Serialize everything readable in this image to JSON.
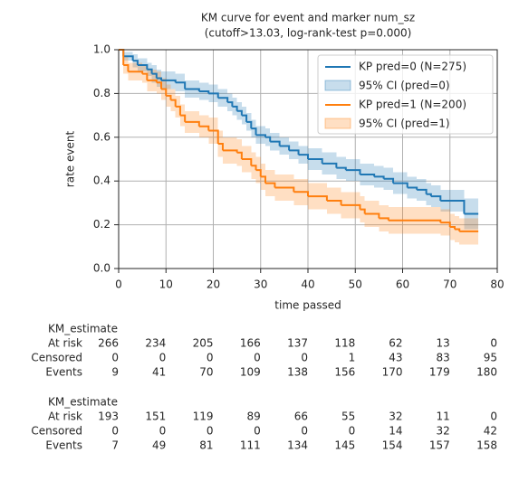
{
  "chart_data": {
    "type": "km",
    "title": "KM curve for event and marker num_sz",
    "subtitle": "(cutoff>13.03, log-rank-test p=0.000)",
    "x_label": "time passed",
    "y_label": "rate event",
    "xlim": [
      0,
      80
    ],
    "xticks": [
      0,
      10,
      20,
      30,
      40,
      50,
      60,
      70,
      80
    ],
    "ylim": [
      0,
      1
    ],
    "yticks": [
      {
        "value": 0,
        "label": "0.0"
      },
      0.2,
      0.4,
      0.6,
      0.8,
      {
        "value": 1,
        "label": "1.0"
      }
    ],
    "grid": true,
    "legend": "upper right",
    "series": [
      {
        "name": "KP pred=0 (N=275)",
        "ci_name": "95% CI (pred=0)",
        "color": "#1f77b4",
        "x": [
          0,
          1,
          3,
          4,
          6,
          7,
          8,
          9,
          12,
          14,
          17,
          19,
          21,
          23,
          24,
          25,
          26,
          27,
          28,
          29,
          31,
          32,
          34,
          36,
          38,
          40,
          43,
          46,
          48,
          51,
          54,
          56,
          58,
          61,
          63,
          65,
          66,
          68,
          73,
          76
        ],
        "values": [
          1.0,
          0.97,
          0.95,
          0.93,
          0.91,
          0.89,
          0.87,
          0.86,
          0.85,
          0.82,
          0.81,
          0.8,
          0.78,
          0.76,
          0.74,
          0.72,
          0.7,
          0.67,
          0.64,
          0.61,
          0.6,
          0.58,
          0.56,
          0.54,
          0.52,
          0.5,
          0.48,
          0.46,
          0.45,
          0.43,
          0.42,
          0.41,
          0.39,
          0.37,
          0.36,
          0.34,
          0.33,
          0.31,
          0.25,
          0.25
        ],
        "ci_lower": [
          1.0,
          0.95,
          0.92,
          0.9,
          0.88,
          0.85,
          0.83,
          0.82,
          0.81,
          0.78,
          0.77,
          0.76,
          0.74,
          0.72,
          0.7,
          0.68,
          0.66,
          0.63,
          0.6,
          0.57,
          0.56,
          0.54,
          0.52,
          0.5,
          0.48,
          0.45,
          0.43,
          0.41,
          0.4,
          0.38,
          0.37,
          0.36,
          0.34,
          0.32,
          0.31,
          0.29,
          0.28,
          0.26,
          0.18,
          0.18
        ],
        "ci_upper": [
          1.0,
          0.99,
          0.98,
          0.96,
          0.94,
          0.93,
          0.91,
          0.9,
          0.89,
          0.86,
          0.85,
          0.84,
          0.82,
          0.8,
          0.78,
          0.76,
          0.74,
          0.71,
          0.68,
          0.65,
          0.64,
          0.62,
          0.6,
          0.58,
          0.56,
          0.55,
          0.53,
          0.51,
          0.5,
          0.48,
          0.47,
          0.46,
          0.44,
          0.42,
          0.41,
          0.39,
          0.38,
          0.36,
          0.32,
          0.32
        ]
      },
      {
        "name": "KP pred=1 (N=200)",
        "ci_name": "95% CI (pred=1)",
        "color": "#ff7f0e",
        "x": [
          0,
          1,
          2,
          5,
          6,
          8,
          9,
          10,
          11,
          12,
          13,
          14,
          17,
          19,
          21,
          22,
          25,
          26,
          28,
          29,
          30,
          31,
          33,
          37,
          40,
          44,
          47,
          51,
          52,
          55,
          57,
          68,
          70,
          71,
          72,
          76
        ],
        "values": [
          1.0,
          0.93,
          0.9,
          0.89,
          0.86,
          0.85,
          0.82,
          0.79,
          0.77,
          0.74,
          0.7,
          0.67,
          0.65,
          0.63,
          0.57,
          0.54,
          0.53,
          0.5,
          0.47,
          0.45,
          0.42,
          0.39,
          0.37,
          0.35,
          0.33,
          0.31,
          0.29,
          0.27,
          0.25,
          0.23,
          0.22,
          0.21,
          0.19,
          0.18,
          0.17,
          0.17
        ],
        "ci_lower": [
          1.0,
          0.89,
          0.86,
          0.85,
          0.81,
          0.8,
          0.77,
          0.74,
          0.72,
          0.69,
          0.65,
          0.62,
          0.6,
          0.57,
          0.51,
          0.48,
          0.47,
          0.44,
          0.41,
          0.39,
          0.36,
          0.33,
          0.31,
          0.29,
          0.27,
          0.25,
          0.23,
          0.21,
          0.19,
          0.17,
          0.16,
          0.15,
          0.13,
          0.12,
          0.11,
          0.11
        ],
        "ci_upper": [
          1.0,
          0.97,
          0.94,
          0.93,
          0.91,
          0.9,
          0.87,
          0.84,
          0.82,
          0.79,
          0.75,
          0.72,
          0.7,
          0.69,
          0.63,
          0.6,
          0.59,
          0.56,
          0.53,
          0.51,
          0.48,
          0.45,
          0.43,
          0.41,
          0.39,
          0.37,
          0.35,
          0.33,
          0.31,
          0.29,
          0.28,
          0.27,
          0.25,
          0.24,
          0.23,
          0.23
        ]
      }
    ],
    "risk_tables": [
      {
        "title": "KM_estimate",
        "rows": [
          {
            "label": "At risk",
            "values": [
              266,
              234,
              205,
              166,
              137,
              118,
              62,
              13,
              0
            ]
          },
          {
            "label": "Censored",
            "values": [
              0,
              0,
              0,
              0,
              0,
              1,
              43,
              83,
              95
            ]
          },
          {
            "label": "Events",
            "values": [
              9,
              41,
              70,
              109,
              138,
              156,
              170,
              179,
              180
            ]
          }
        ]
      },
      {
        "title": "KM_estimate",
        "rows": [
          {
            "label": "At risk",
            "values": [
              193,
              151,
              119,
              89,
              66,
              55,
              32,
              11,
              0
            ]
          },
          {
            "label": "Censored",
            "values": [
              0,
              0,
              0,
              0,
              0,
              0,
              14,
              32,
              42
            ]
          },
          {
            "label": "Events",
            "values": [
              7,
              49,
              81,
              111,
              134,
              145,
              154,
              157,
              158
            ]
          }
        ]
      }
    ]
  }
}
